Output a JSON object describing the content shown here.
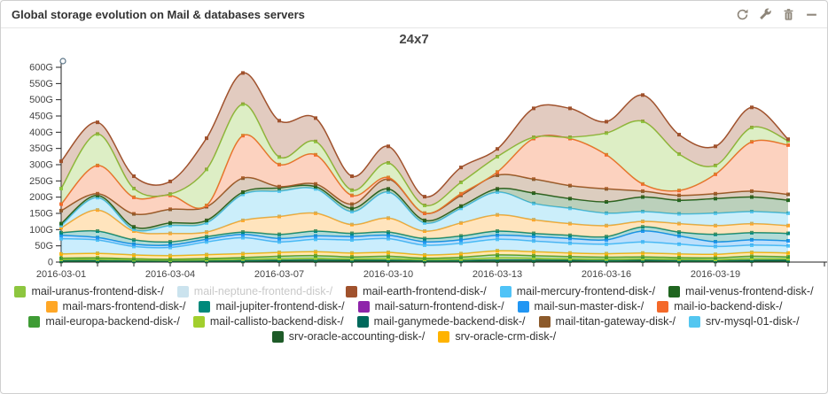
{
  "window": {
    "title": "Global storage evolution on Mail & databases servers",
    "icons": [
      "refresh",
      "wrench",
      "trash",
      "minimize"
    ]
  },
  "chart_data": {
    "type": "area",
    "subtype": "stacked-spline-area",
    "title": "24x7",
    "ylabel": "",
    "xlabel": "",
    "ylim": [
      0,
      620
    ],
    "ytick_step": 50,
    "ytick_suffix": "G",
    "grid": false,
    "legend_position": "bottom",
    "x_major_tick_every": 3,
    "axis_extra_days": 1,
    "x": [
      "2016-03-01",
      "2016-03-02",
      "2016-03-03",
      "2016-03-04",
      "2016-03-05",
      "2016-03-06",
      "2016-03-07",
      "2016-03-08",
      "2016-03-09",
      "2016-03-10",
      "2016-03-11",
      "2016-03-12",
      "2016-03-13",
      "2016-03-14",
      "2016-03-15",
      "2016-03-16",
      "2016-03-17",
      "2016-03-18",
      "2016-03-19",
      "2016-03-20",
      "2016-03-21"
    ],
    "x_tick_labels_shown": [
      "2016-03-01",
      "2016-03-04",
      "2016-03-07",
      "2016-03-10",
      "2016-03-13",
      "2016-03-16",
      "2016-03-19"
    ],
    "stack_order": "bottom-to-top",
    "units": "gigabytes",
    "series": [
      {
        "id": "oracle-accounting",
        "name": "srv-oracle-accounting-disk-/",
        "color": "#1E5B28",
        "values": [
          2,
          2,
          2,
          2,
          2,
          2,
          3,
          3,
          3,
          3,
          2,
          2,
          3,
          3,
          3,
          2,
          3,
          2,
          2,
          3,
          3
        ]
      },
      {
        "id": "ganymede",
        "name": "mail-ganymede-backend-disk-/",
        "color": "#00695C",
        "values": [
          3,
          3,
          2,
          2,
          2,
          3,
          3,
          4,
          3,
          3,
          3,
          3,
          4,
          4,
          3,
          3,
          3,
          3,
          3,
          3,
          3
        ]
      },
      {
        "id": "callisto",
        "name": "mail-callisto-backend-disk-/",
        "color": "#A2CF2E",
        "values": [
          3,
          4,
          3,
          2,
          3,
          4,
          5,
          5,
          4,
          5,
          3,
          4,
          6,
          5,
          4,
          4,
          4,
          4,
          3,
          5,
          4
        ]
      },
      {
        "id": "europa",
        "name": "mail-europa-backend-disk-/",
        "color": "#3F9C35",
        "values": [
          4,
          4,
          3,
          3,
          4,
          5,
          7,
          8,
          6,
          7,
          4,
          6,
          9,
          8,
          7,
          6,
          6,
          5,
          5,
          7,
          6
        ]
      },
      {
        "id": "oracle-crm",
        "name": "srv-oracle-crm-disk-/",
        "color": "#FFB300",
        "values": [
          13,
          14,
          12,
          11,
          12,
          12,
          12,
          12,
          12,
          12,
          10,
          11,
          13,
          12,
          11,
          11,
          12,
          11,
          11,
          12,
          12
        ]
      },
      {
        "id": "mercury",
        "name": "mail-mercury-frontend-disk-/",
        "color": "#4FC3F7",
        "values": [
          47,
          41,
          26,
          25,
          39,
          49,
          32,
          38,
          40,
          42,
          30,
          32,
          35,
          33,
          30,
          29,
          34,
          30,
          24,
          22,
          22
        ]
      },
      {
        "id": "saturn",
        "name": "mail-saturn-frontend-disk-/",
        "color": "#8E24AA",
        "values": [
          0.5,
          0.5,
          0.5,
          0.5,
          0.5,
          0.5,
          0.5,
          0.5,
          0.5,
          0.5,
          0.5,
          0.5,
          0.5,
          0.5,
          0.5,
          0.5,
          0.5,
          0.5,
          0.5,
          0.5,
          0.5
        ]
      },
      {
        "id": "sun",
        "name": "mail-sun-master-disk-/",
        "color": "#2196F3",
        "values": [
          10,
          7,
          7,
          7,
          8,
          10,
          10,
          10,
          10,
          10,
          10,
          10,
          12,
          13,
          14,
          13,
          33,
          25,
          14,
          16,
          15
        ]
      },
      {
        "id": "jupiter",
        "name": "mail-jupiter-frontend-disk-/",
        "color": "#00897B",
        "values": [
          8,
          20,
          13,
          10,
          8,
          7,
          13,
          15,
          10,
          10,
          10,
          12,
          13,
          10,
          10,
          10,
          13,
          12,
          23,
          22,
          23
        ]
      },
      {
        "id": "mars",
        "name": "mail-mars-frontend-disk-/",
        "color": "#FFA726",
        "values": [
          15,
          65,
          27,
          26,
          14,
          36,
          55,
          55,
          27,
          43,
          23,
          40,
          50,
          42,
          36,
          34,
          17,
          26,
          27,
          28,
          24
        ]
      },
      {
        "id": "mysql",
        "name": "srv-mysql-01-disk-/",
        "color": "#53C6F0",
        "values": [
          7,
          38,
          5,
          24,
          28,
          80,
          78,
          75,
          40,
          80,
          25,
          45,
          70,
          50,
          47,
          38,
          30,
          30,
          38,
          37,
          38
        ]
      },
      {
        "id": "venus",
        "name": "mail-venus-frontend-disk-/",
        "color": "#1F651F",
        "values": [
          6,
          7,
          8,
          8,
          8,
          7,
          10,
          7,
          10,
          10,
          8,
          7,
          10,
          32,
          30,
          35,
          45,
          42,
          45,
          45,
          40
        ]
      },
      {
        "id": "titan",
        "name": "mail-titan-gateway-disk-/",
        "color": "#8C5A2B",
        "values": [
          40,
          5,
          40,
          42,
          42,
          43,
          4,
          8,
          13,
          30,
          22,
          33,
          42,
          43,
          40,
          40,
          18,
          15,
          15,
          18,
          18
        ]
      },
      {
        "id": "io",
        "name": "mail-io-backend-disk-/",
        "color": "#F4692A",
        "values": [
          20,
          87,
          51,
          43,
          4,
          131,
          68,
          90,
          27,
          5,
          0,
          5,
          10,
          125,
          145,
          105,
          22,
          15,
          60,
          152,
          152
        ]
      },
      {
        "id": "uranus",
        "name": "mail-uranus-frontend-disk-/",
        "color": "#8DC63F",
        "values": [
          48,
          97,
          27,
          4,
          111,
          97,
          23,
          41,
          16,
          45,
          24,
          35,
          47,
          4,
          4,
          67,
          193,
          112,
          27,
          44,
          13
        ]
      },
      {
        "id": "earth",
        "name": "mail-earth-frontend-disk-/",
        "color": "#A0522D",
        "values": [
          84,
          36,
          38,
          39,
          96,
          96,
          112,
          72,
          43,
          51,
          27,
          46,
          24,
          89,
          89,
          35,
          81,
          60,
          59,
          62,
          5
        ]
      }
    ],
    "hidden_series": [
      {
        "id": "neptune",
        "name": "mail-neptune-frontend-disk-/",
        "color": "#CBE3EE",
        "visible": false
      }
    ],
    "legend_rows": [
      [
        {
          "label": "mail-uranus-frontend-disk-/",
          "color": "#8DC63F"
        },
        {
          "label": "mail-neptune-frontend-disk-/",
          "color": "#CBE3EE",
          "disabled": true
        },
        {
          "label": "mail-earth-frontend-disk-/",
          "color": "#A0522D"
        },
        {
          "label": "mail-mercury-frontend-disk-/",
          "color": "#4FC3F7"
        },
        {
          "label": "mail-venus-frontend-disk-/",
          "color": "#1F651F"
        }
      ],
      [
        {
          "label": "mail-mars-frontend-disk-/",
          "color": "#FFA726"
        },
        {
          "label": "mail-jupiter-frontend-disk-/",
          "color": "#00897B"
        },
        {
          "label": "mail-saturn-frontend-disk-/",
          "color": "#8E24AA"
        },
        {
          "label": "mail-sun-master-disk-/",
          "color": "#2196F3"
        },
        {
          "label": "mail-io-backend-disk-/",
          "color": "#F4692A"
        }
      ],
      [
        {
          "label": "mail-europa-backend-disk-/",
          "color": "#3F9C35"
        },
        {
          "label": "mail-callisto-backend-disk-/",
          "color": "#A2CF2E"
        },
        {
          "label": "mail-ganymede-backend-disk-/",
          "color": "#00695C"
        },
        {
          "label": "mail-titan-gateway-disk-/",
          "color": "#8C5A2B"
        },
        {
          "label": "srv-mysql-01-disk-/",
          "color": "#53C6F0"
        }
      ],
      [
        {
          "label": "srv-oracle-accounting-disk-/",
          "color": "#1E5B28"
        },
        {
          "label": "srv-oracle-crm-disk-/",
          "color": "#FFB300"
        }
      ]
    ]
  },
  "colors": {
    "icon_gray": "#8d8579",
    "axis": "#222222",
    "tick_label": "#444444",
    "title_text": "#333333"
  }
}
